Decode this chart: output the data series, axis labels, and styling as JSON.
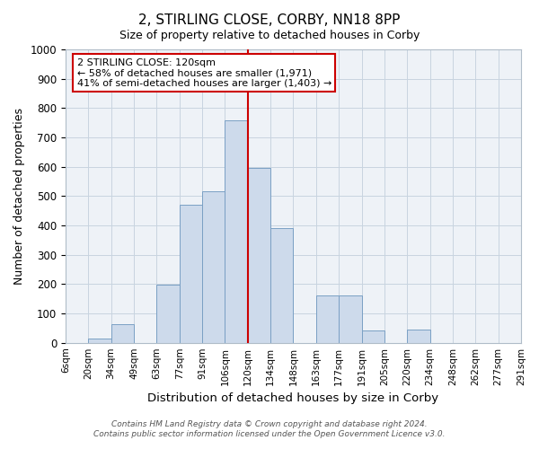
{
  "title": "2, STIRLING CLOSE, CORBY, NN18 8PP",
  "subtitle": "Size of property relative to detached houses in Corby",
  "xlabel": "Distribution of detached houses by size in Corby",
  "ylabel": "Number of detached properties",
  "bin_labels": [
    "6sqm",
    "20sqm",
    "34sqm",
    "49sqm",
    "63sqm",
    "77sqm",
    "91sqm",
    "106sqm",
    "120sqm",
    "134sqm",
    "148sqm",
    "163sqm",
    "177sqm",
    "191sqm",
    "205sqm",
    "220sqm",
    "234sqm",
    "248sqm",
    "262sqm",
    "277sqm",
    "291sqm"
  ],
  "bar_heights": [
    0,
    15,
    63,
    0,
    197,
    470,
    517,
    757,
    597,
    390,
    0,
    160,
    160,
    42,
    0,
    45,
    0,
    0,
    0,
    0
  ],
  "bar_color": "#cddaeb",
  "bar_edge_color": "#7aa0c4",
  "marker_bin": 8,
  "marker_color": "#cc0000",
  "ylim": [
    0,
    1000
  ],
  "yticks": [
    0,
    100,
    200,
    300,
    400,
    500,
    600,
    700,
    800,
    900,
    1000
  ],
  "annotation_title": "2 STIRLING CLOSE: 120sqm",
  "annotation_line1": "← 58% of detached houses are smaller (1,971)",
  "annotation_line2": "41% of semi-detached houses are larger (1,403) →",
  "footer1": "Contains HM Land Registry data © Crown copyright and database right 2024.",
  "footer2": "Contains public sector information licensed under the Open Government Licence v3.0.",
  "background_color": "#eef2f7",
  "grid_color": "#c8d4e0"
}
